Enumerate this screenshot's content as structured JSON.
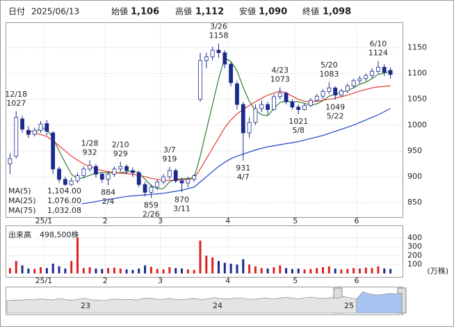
{
  "header": {
    "fields": [
      {
        "label": "日付",
        "value": "2025/06/13",
        "color": "#222"
      },
      {
        "label": "始値",
        "value": "1,106",
        "color": "#222"
      },
      {
        "label": "高値",
        "value": "1,112",
        "color": "#e00000"
      },
      {
        "label": "安値",
        "value": "1,090",
        "color": "#008000"
      },
      {
        "label": "終値",
        "value": "1,098",
        "color": "#222"
      }
    ]
  },
  "chart_data": {
    "type": "candlestick",
    "categories": [
      null,
      null,
      null,
      null,
      null,
      null,
      "25/1",
      null,
      null,
      null,
      null,
      null,
      null,
      null,
      null,
      null,
      "2",
      null,
      null,
      null,
      null,
      null,
      null,
      null,
      null,
      "3",
      null,
      null,
      null,
      null,
      null,
      null,
      null,
      null,
      null,
      null,
      "4",
      null,
      null,
      null,
      null,
      null,
      null,
      null,
      null,
      null,
      null,
      "5",
      null,
      null,
      null,
      null,
      null,
      null,
      null,
      null,
      null,
      "6",
      null,
      null,
      null,
      null,
      null
    ],
    "ohlc": [
      [
        925,
        945,
        905,
        935
      ],
      [
        940,
        1027,
        935,
        1015
      ],
      [
        1012,
        1018,
        985,
        992
      ],
      [
        990,
        998,
        975,
        982
      ],
      [
        982,
        995,
        978,
        990
      ],
      [
        990,
        1008,
        985,
        1002
      ],
      [
        1003,
        1010,
        980,
        988
      ],
      [
        985,
        988,
        905,
        915
      ],
      [
        915,
        920,
        888,
        895
      ],
      [
        895,
        900,
        878,
        885
      ],
      [
        885,
        898,
        880,
        892
      ],
      [
        892,
        908,
        888,
        902
      ],
      [
        902,
        920,
        898,
        915
      ],
      [
        915,
        932,
        910,
        922
      ],
      [
        920,
        925,
        898,
        905
      ],
      [
        905,
        908,
        888,
        895
      ],
      [
        895,
        910,
        884,
        905
      ],
      [
        905,
        920,
        900,
        915
      ],
      [
        915,
        929,
        910,
        920
      ],
      [
        920,
        924,
        905,
        912
      ],
      [
        912,
        918,
        900,
        908
      ],
      [
        908,
        912,
        880,
        885
      ],
      [
        885,
        890,
        862,
        870
      ],
      [
        870,
        885,
        859,
        880
      ],
      [
        880,
        895,
        875,
        890
      ],
      [
        890,
        905,
        885,
        900
      ],
      [
        900,
        919,
        895,
        912
      ],
      [
        912,
        916,
        888,
        892
      ],
      [
        892,
        898,
        870,
        888
      ],
      [
        888,
        900,
        880,
        895
      ],
      [
        895,
        905,
        890,
        902
      ],
      [
        1050,
        1140,
        1045,
        1125
      ],
      [
        1125,
        1140,
        1110,
        1132
      ],
      [
        1132,
        1152,
        1125,
        1145
      ],
      [
        1145,
        1158,
        1130,
        1140
      ],
      [
        1140,
        1145,
        1110,
        1118
      ],
      [
        1118,
        1122,
        1075,
        1082
      ],
      [
        1080,
        1085,
        1030,
        1040
      ],
      [
        1040,
        1045,
        931,
        985
      ],
      [
        985,
        1015,
        975,
        1005
      ],
      [
        1005,
        1040,
        1000,
        1032
      ],
      [
        1032,
        1048,
        1025,
        1040
      ],
      [
        1040,
        1045,
        1020,
        1030
      ],
      [
        1030,
        1060,
        1028,
        1055
      ],
      [
        1055,
        1073,
        1050,
        1062
      ],
      [
        1062,
        1065,
        1040,
        1045
      ],
      [
        1045,
        1050,
        1030,
        1035
      ],
      [
        1035,
        1040,
        1021,
        1030
      ],
      [
        1030,
        1042,
        1028,
        1038
      ],
      [
        1038,
        1052,
        1035,
        1048
      ],
      [
        1048,
        1060,
        1045,
        1056
      ],
      [
        1056,
        1070,
        1050,
        1065
      ],
      [
        1065,
        1083,
        1060,
        1072
      ],
      [
        1072,
        1075,
        1049,
        1058
      ],
      [
        1058,
        1070,
        1055,
        1066
      ],
      [
        1066,
        1080,
        1062,
        1076
      ],
      [
        1076,
        1090,
        1072,
        1086
      ],
      [
        1086,
        1095,
        1080,
        1090
      ],
      [
        1090,
        1100,
        1085,
        1096
      ],
      [
        1096,
        1110,
        1090,
        1104
      ],
      [
        1104,
        1124,
        1100,
        1112
      ],
      [
        1112,
        1118,
        1095,
        1102
      ],
      [
        1106,
        1112,
        1090,
        1098
      ]
    ],
    "up_color": "#ffffff",
    "down_color": "#1a2a8c",
    "ylim": [
      822,
      1195
    ],
    "yticks": [
      850,
      900,
      950,
      1000,
      1050,
      1100,
      1150
    ],
    "grid": true,
    "series": [
      {
        "name": "MA(5)",
        "color": "#2e7d32",
        "value_label": "1,104.00",
        "values": [
          null,
          null,
          null,
          null,
          983,
          996,
          991,
          975,
          950,
          927,
          905,
          896,
          898,
          903,
          907,
          908,
          908,
          908,
          908,
          909,
          912,
          908,
          895,
          883,
          877,
          877,
          890,
          895,
          896,
          897,
          898,
          940,
          990,
          1040,
          1090,
          1130,
          1123,
          1105,
          1073,
          1046,
          1029,
          1020,
          1018,
          1032,
          1044,
          1046,
          1045,
          1045,
          1042,
          1039,
          1041,
          1047,
          1056,
          1060,
          1063,
          1067,
          1072,
          1079,
          1083,
          1090,
          1098,
          1101,
          1104
        ]
      },
      {
        "name": "MA(25)",
        "color": "#e53935",
        "value_label": "1,076.00",
        "values": [
          null,
          null,
          null,
          990,
          985,
          982,
          978,
          970,
          960,
          950,
          940,
          932,
          925,
          920,
          915,
          912,
          910,
          908,
          907,
          906,
          905,
          903,
          900,
          897,
          895,
          893,
          893,
          894,
          894,
          895,
          897,
          915,
          935,
          955,
          975,
          995,
          1010,
          1022,
          1030,
          1038,
          1045,
          1052,
          1058,
          1062,
          1066,
          1062,
          1056,
          1050,
          1046,
          1045,
          1046,
          1048,
          1050,
          1052,
          1055,
          1058,
          1062,
          1066,
          1069,
          1072,
          1074,
          1075,
          1076
        ]
      },
      {
        "name": "MA(75)",
        "color": "#1e40c8",
        "value_label": "1,032.08",
        "values": [
          null,
          null,
          null,
          null,
          null,
          null,
          null,
          null,
          null,
          null,
          845,
          846,
          848,
          850,
          852,
          854,
          856,
          858,
          860,
          862,
          863,
          864,
          865,
          866,
          867,
          868,
          870,
          872,
          874,
          877,
          880,
          890,
          900,
          910,
          920,
          928,
          935,
          940,
          944,
          948,
          952,
          955,
          958,
          960,
          962,
          964,
          966,
          968,
          971,
          974,
          977,
          980,
          984,
          988,
          992,
          996,
          1000,
          1005,
          1010,
          1015,
          1020,
          1026,
          1032
        ]
      }
    ],
    "annotations": [
      {
        "date": "12/18",
        "value": 1027,
        "pos": "above"
      },
      {
        "date": "1/28",
        "value": 932,
        "pos": "above"
      },
      {
        "date": "2/10",
        "value": 929,
        "pos": "above"
      },
      {
        "date": "3/7",
        "value": 919,
        "pos": "above"
      },
      {
        "date": "3/26",
        "value": 1158,
        "pos": "above"
      },
      {
        "date": "4/23",
        "value": 1073,
        "pos": "above"
      },
      {
        "date": "5/20",
        "value": 1083,
        "pos": "above"
      },
      {
        "date": "6/10",
        "value": 1124,
        "pos": "above"
      },
      {
        "date": "2/4",
        "value": 884,
        "pos": "below"
      },
      {
        "date": "2/26",
        "value": 859,
        "pos": "below"
      },
      {
        "date": "3/11",
        "value": 870,
        "pos": "below"
      },
      {
        "date": "4/7",
        "value": 931,
        "pos": "below"
      },
      {
        "date": "5/8",
        "value": 1021,
        "pos": "below"
      },
      {
        "date": "5/22",
        "value": 1049,
        "pos": "below"
      }
    ],
    "volume": {
      "title": "出来高",
      "latest": "498,500株",
      "unit": "(万株)",
      "up_color": "#e02020",
      "down_color": "#1a2a8c",
      "ylim": [
        0,
        470
      ],
      "yticks": [
        100,
        200,
        300,
        400
      ],
      "values": [
        60,
        140,
        90,
        55,
        50,
        70,
        60,
        110,
        80,
        55,
        140,
        400,
        60,
        70,
        55,
        50,
        60,
        65,
        55,
        45,
        40,
        55,
        90,
        75,
        50,
        45,
        70,
        60,
        55,
        45,
        40,
        370,
        200,
        180,
        140,
        120,
        110,
        100,
        160,
        100,
        80,
        60,
        55,
        70,
        90,
        60,
        50,
        55,
        45,
        50,
        60,
        70,
        80,
        55,
        45,
        50,
        60,
        55,
        65,
        60,
        80,
        55,
        49.85
      ]
    },
    "navigator": {
      "labels": [
        "23",
        "24",
        "25"
      ],
      "ylim": [
        0,
        10
      ],
      "values": [
        5,
        5.2,
        5.1,
        5.4,
        5.3,
        5.6,
        5.5,
        5.2,
        5.8,
        5.4,
        5.1,
        5.5,
        5.9,
        5.3,
        5.2,
        5.0,
        5.4,
        5.6,
        5.3,
        5.5,
        5.2,
        5.8,
        6.0,
        5.6,
        5.4,
        5.9,
        5.5,
        5.3,
        5.6,
        5.9,
        5.4,
        5.7,
        6.2,
        5.8,
        5.6,
        5.9,
        6.1,
        5.7,
        5.5,
        5.8,
        6.0,
        5.6,
        5.9,
        6.3,
        6.0,
        5.7,
        6.1,
        6.4,
        6.0,
        5.8,
        6.2,
        5.9,
        6.6,
        6.1,
        5.6,
        8.5,
        7.6,
        7.2,
        7.4,
        7.8,
        7.7,
        8.0
      ]
    }
  }
}
